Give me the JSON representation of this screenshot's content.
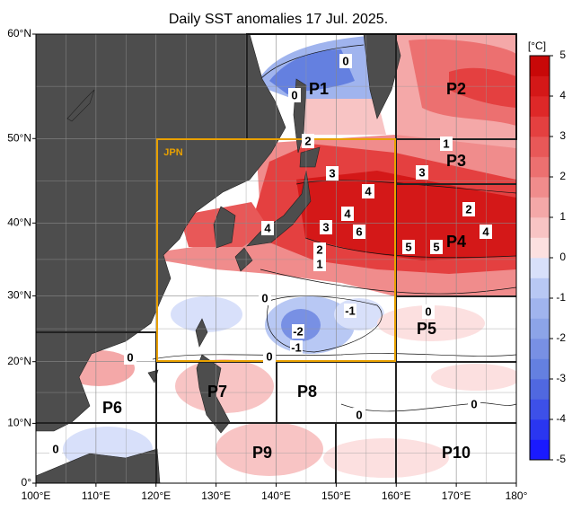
{
  "title": "Daily SST anomalies 17 Jul. 2025.",
  "map": {
    "lonlim": [
      100,
      180
    ],
    "latlim": [
      0,
      60
    ],
    "lon_ticks": [
      {
        "value": 100,
        "label": "100°E"
      },
      {
        "value": 110,
        "label": "110°E"
      },
      {
        "value": 120,
        "label": "120°E"
      },
      {
        "value": 130,
        "label": "130°E"
      },
      {
        "value": 140,
        "label": "140°E"
      },
      {
        "value": 150,
        "label": "150°E"
      },
      {
        "value": 160,
        "label": "160°E"
      },
      {
        "value": 170,
        "label": "170°E"
      },
      {
        "value": 180,
        "label": "180°"
      }
    ],
    "lat_ticks": [
      {
        "value": 0,
        "label": "0°"
      },
      {
        "value": 10,
        "label": "10°N"
      },
      {
        "value": 20,
        "label": "20°N"
      },
      {
        "value": 30,
        "label": "30°N"
      },
      {
        "value": 40,
        "label": "40°N"
      },
      {
        "value": 50,
        "label": "50°N"
      },
      {
        "value": 60,
        "label": "60°N"
      }
    ],
    "regions": [
      "JPN",
      "P1",
      "P2",
      "P3",
      "P4",
      "P5",
      "P6",
      "P7",
      "P8",
      "P9",
      "P10"
    ],
    "contour_labels": [
      0,
      0,
      2,
      3,
      4,
      3,
      1,
      4,
      3,
      4,
      6,
      2,
      1,
      5,
      5,
      4,
      2,
      0,
      -1,
      0,
      -2,
      -1,
      0,
      0,
      0,
      0,
      0
    ],
    "colorbar": {
      "unit": "[°C]",
      "lim": [
        -5,
        5
      ],
      "ticks": [
        -5,
        -4,
        -3,
        -2,
        -1,
        0,
        1,
        2,
        3,
        4,
        5
      ],
      "colors": [
        "#1a1aff",
        "#2a36f0",
        "#3d50e8",
        "#5068e0",
        "#6480e0",
        "#7890e4",
        "#8ca4e8",
        "#a0b4ee",
        "#b8c8f4",
        "#d8e0fa",
        "#fce0e0",
        "#f8c4c4",
        "#f4a8a8",
        "#f08c8c",
        "#ec7070",
        "#e85858",
        "#e44040",
        "#de2828",
        "#d41818",
        "#c80808"
      ]
    }
  }
}
